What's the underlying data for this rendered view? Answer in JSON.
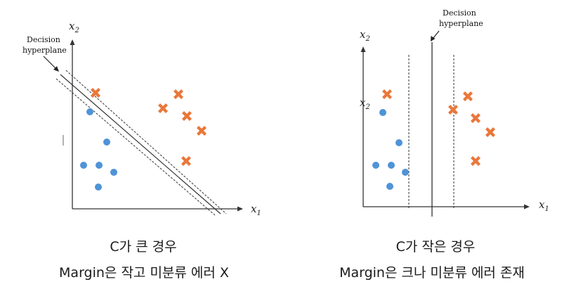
{
  "left_panel": {
    "axis_x": "x",
    "axis_x_sub": "1",
    "axis_y": "x",
    "axis_y_sub": "2",
    "hyperplane_label": [
      "Decision",
      "hyperplane"
    ],
    "caption_title": "C가 큰 경우",
    "caption_desc": "Margin은 작고 미분류 에러 X"
  },
  "right_panel": {
    "axis_x": "x",
    "axis_x_sub": "1",
    "axis_y": "x",
    "axis_y_sub": "2",
    "axis_y_inner": "x",
    "axis_y_inner_sub": "2",
    "hyperplane_label": [
      "Decision",
      "hyperplane"
    ],
    "caption_title": "C가 작은 경우",
    "caption_desc": "Margin은 크나 미분류 에러 존재"
  },
  "colors": {
    "blue_class": "#4f93d8",
    "orange_class": "#e9773a",
    "axis": "#333333"
  }
}
